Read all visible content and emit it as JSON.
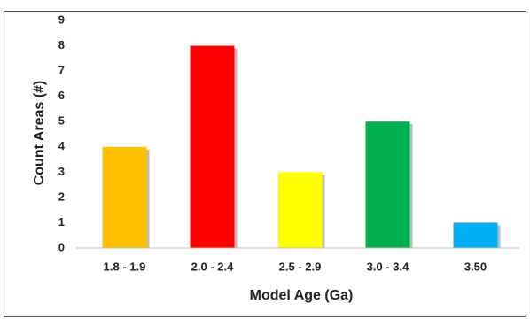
{
  "chart_data": {
    "type": "bar",
    "x_label": "Model Age (Ga)",
    "y_label": "Count Areas (#)",
    "categories": [
      "1.8 - 1.9",
      "2.0 - 2.4",
      "2.5 - 2.9",
      "3.0 - 3.4",
      "3.50"
    ],
    "values": [
      4,
      8,
      3,
      5,
      1
    ],
    "colors": [
      "#ffc000",
      "#ff0000",
      "#ffff00",
      "#00b050",
      "#00b0f0"
    ],
    "ylim": [
      0,
      9
    ],
    "yticks": [
      0,
      1,
      2,
      3,
      4,
      5,
      6,
      7,
      8,
      9
    ],
    "grid": false
  }
}
